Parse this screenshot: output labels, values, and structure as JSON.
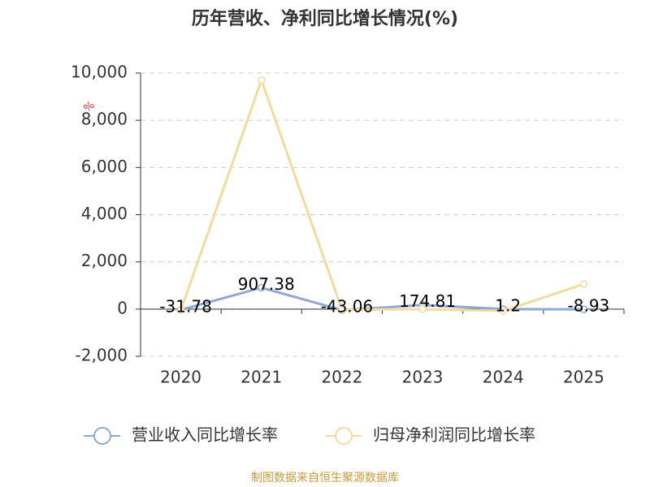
{
  "chart_data": {
    "type": "line",
    "title": "历年营收、净利同比增长情况(%)",
    "y_axis_label": "%",
    "categories": [
      "2020",
      "2021",
      "2022",
      "2023",
      "2024",
      "2025"
    ],
    "series": [
      {
        "name": "营业收入同比增长率",
        "color": "#8fa9d6",
        "values": [
          -31.78,
          907.38,
          -43.06,
          174.81,
          1.2,
          -8.93
        ],
        "show_value_labels": true
      },
      {
        "name": "归母净利润同比增长率",
        "color": "#f8d99c",
        "values": [
          -40,
          9700,
          -30,
          0,
          -80,
          1060
        ],
        "show_value_labels": false
      }
    ],
    "ylim": [
      -2000,
      10000
    ],
    "yticks": [
      {
        "value": -2000,
        "label": "-2,000"
      },
      0,
      {
        "value": 2000,
        "label": "2,000"
      },
      {
        "value": 4000,
        "label": "4,000"
      },
      {
        "value": 6000,
        "label": "6,000"
      },
      {
        "value": 8000,
        "label": "8,000"
      },
      {
        "value": 10000,
        "label": "10,000"
      }
    ],
    "grid": true,
    "source": "制图数据来自恒生聚源数据库"
  }
}
